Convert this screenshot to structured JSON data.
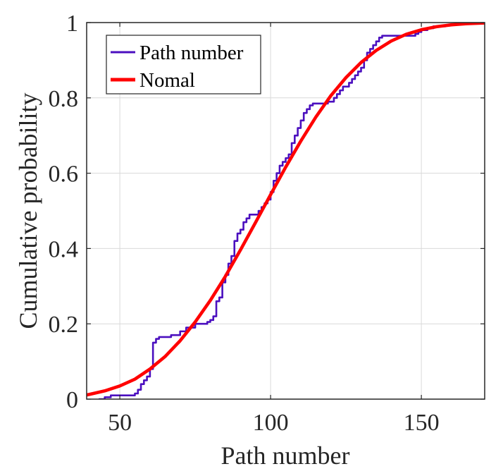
{
  "chart_data": {
    "type": "line",
    "xlabel": "Path number",
    "ylabel": "Cumulative probability",
    "xlim": [
      39,
      171
    ],
    "ylim": [
      0,
      1
    ],
    "xticks": [
      50,
      100,
      150
    ],
    "yticks": [
      0,
      0.2,
      0.4,
      0.6,
      0.8,
      1
    ],
    "ytick_labels": [
      "0",
      "0.2",
      "0.4",
      "0.6",
      "0.8",
      "1"
    ],
    "grid": true,
    "legend_position": "top-left",
    "series": [
      {
        "name": "Path number",
        "style": "step",
        "color": "#4b0fbf",
        "x": [
          43,
          45,
          47,
          49,
          51,
          53,
          55,
          56,
          57,
          58,
          59,
          60,
          61,
          62,
          63,
          65,
          67,
          70,
          72,
          73,
          75,
          79,
          80,
          81,
          82,
          83,
          84,
          85,
          86,
          87,
          88,
          89,
          90,
          91,
          92,
          93,
          96,
          97,
          98,
          99,
          100,
          101,
          102,
          103,
          104,
          105,
          106,
          107,
          108,
          109,
          110,
          111,
          112,
          113,
          114,
          116,
          117,
          118,
          119,
          121,
          122,
          123,
          124,
          125,
          126,
          127,
          128,
          129,
          130,
          131,
          132,
          133,
          134,
          135,
          136,
          137,
          138,
          139,
          140,
          147,
          148,
          149,
          150,
          152,
          154,
          156,
          158,
          160,
          162,
          165
        ],
        "y": [
          0.0,
          0.005,
          0.01,
          0.01,
          0.01,
          0.01,
          0.015,
          0.025,
          0.04,
          0.05,
          0.06,
          0.08,
          0.15,
          0.16,
          0.165,
          0.165,
          0.17,
          0.18,
          0.19,
          0.19,
          0.2,
          0.205,
          0.21,
          0.22,
          0.26,
          0.27,
          0.31,
          0.33,
          0.36,
          0.38,
          0.42,
          0.44,
          0.45,
          0.47,
          0.48,
          0.49,
          0.5,
          0.51,
          0.52,
          0.53,
          0.55,
          0.58,
          0.6,
          0.62,
          0.63,
          0.64,
          0.65,
          0.68,
          0.7,
          0.72,
          0.74,
          0.76,
          0.77,
          0.78,
          0.785,
          0.785,
          0.785,
          0.785,
          0.79,
          0.8,
          0.81,
          0.82,
          0.83,
          0.83,
          0.84,
          0.85,
          0.86,
          0.87,
          0.88,
          0.9,
          0.92,
          0.93,
          0.94,
          0.95,
          0.96,
          0.965,
          0.965,
          0.965,
          0.965,
          0.965,
          0.97,
          0.975,
          0.98,
          0.985,
          0.99,
          0.99,
          0.993,
          0.995,
          0.998,
          1.0
        ]
      },
      {
        "name": "Nomal",
        "style": "smooth",
        "color": "#ff0000",
        "x": [
          39,
          45,
          50,
          55,
          60,
          65,
          70,
          75,
          80,
          85,
          90,
          95,
          100,
          105,
          110,
          115,
          120,
          125,
          130,
          135,
          140,
          145,
          150,
          155,
          160,
          165,
          171
        ],
        "y": [
          0.011,
          0.022,
          0.035,
          0.053,
          0.08,
          0.113,
          0.155,
          0.205,
          0.262,
          0.326,
          0.396,
          0.469,
          0.543,
          0.616,
          0.685,
          0.749,
          0.806,
          0.854,
          0.894,
          0.926,
          0.951,
          0.969,
          0.981,
          0.989,
          0.994,
          0.997,
          0.999
        ]
      }
    ]
  }
}
